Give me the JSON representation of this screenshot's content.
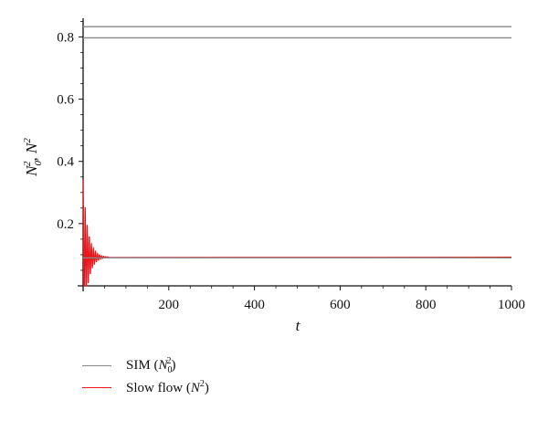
{
  "chart_data": {
    "type": "line",
    "xlabel": "t",
    "ylabel": "N_0^2, N^2",
    "xlim": [
      0,
      1000
    ],
    "ylim": [
      0,
      0.86
    ],
    "x_ticks": [
      200,
      400,
      600,
      800,
      1000
    ],
    "y_ticks": [
      0.2,
      0.4,
      0.6,
      0.8
    ],
    "legend_position": "bottom-left",
    "grid": false,
    "series": [
      {
        "name": "SIM (N_0^2)",
        "color": "#888888",
        "x": [
          0,
          1000
        ],
        "y": [
          0.833,
          0.833
        ]
      },
      {
        "name": "SIM (N_0^2)",
        "color": "#888888",
        "x": [
          0,
          1000
        ],
        "y": [
          0.797,
          0.797
        ]
      },
      {
        "name": "Slow flow (N^2)",
        "color": "#e8151b",
        "oscillation": {
          "start": 0.34,
          "amplitude": 0.24,
          "period": 4.8,
          "decay": 11
        },
        "x": [
          0,
          100,
          200,
          400,
          600,
          800,
          1000
        ],
        "y": [
          0.34,
          0.092,
          0.092,
          0.092,
          0.092,
          0.092,
          0.092
        ]
      },
      {
        "name": "SIM (N_0^2)",
        "color": "#888888",
        "x": [
          0,
          1000
        ],
        "y": [
          0.09,
          0.09
        ]
      }
    ]
  },
  "legend": {
    "sim_label": "SIM",
    "sim_var": "N",
    "sim_sub": "0",
    "sim_sup": "2",
    "slow_label": "Slow flow",
    "slow_var": "N",
    "slow_sup": "2"
  }
}
